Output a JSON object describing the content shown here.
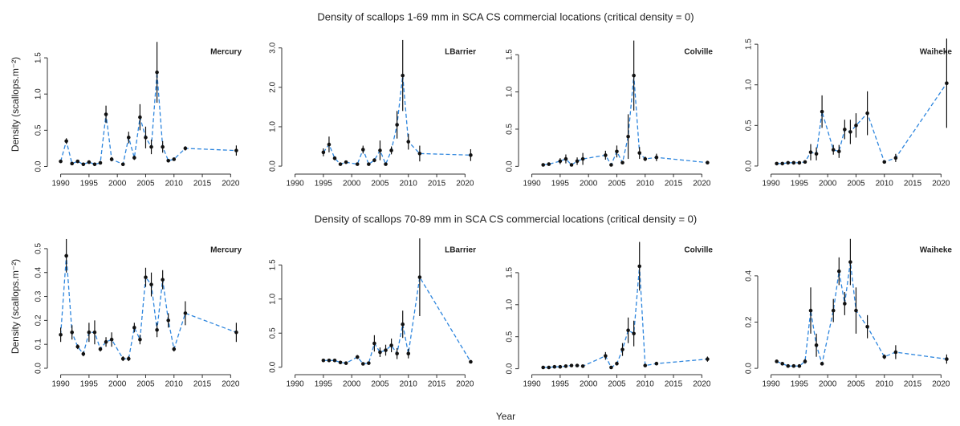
{
  "row_titles": [
    "Density of scallops 1-69 mm in SCA CS commercial locations (critical density = 0)",
    "Density of scallops 70-89 mm in SCA CS commercial locations (critical density = 0)"
  ],
  "y_label": "Density (scallops.m⁻²)",
  "x_label": "Year",
  "chart_data": [
    {
      "type": "line",
      "title": "Mercury",
      "x": [
        1990,
        1991,
        1992,
        1993,
        1994,
        1995,
        1996,
        1997,
        1998,
        1999,
        2001,
        2002,
        2003,
        2004,
        2005,
        2006,
        2007,
        2008,
        2009,
        2010,
        2012,
        2021
      ],
      "series": [
        {
          "color": "#2e86de",
          "values": [
            0.07,
            0.35,
            0.04,
            0.07,
            0.03,
            0.06,
            0.03,
            0.05,
            0.72,
            0.1,
            0.03,
            0.4,
            0.12,
            0.68,
            0.4,
            0.27,
            1.3,
            0.27,
            0.08,
            0.1,
            0.25,
            0.22
          ],
          "errors": [
            0.02,
            0.04,
            0.01,
            0.02,
            0.01,
            0.02,
            0.01,
            0.02,
            0.12,
            0.03,
            0.01,
            0.08,
            0.03,
            0.18,
            0.15,
            0.1,
            0.42,
            0.08,
            0.02,
            0.02,
            0.03,
            0.07
          ]
        }
      ],
      "xlim": [
        1988.5,
        2022.5
      ],
      "xticks": [
        1990,
        1995,
        2000,
        2005,
        2010,
        2015,
        2020
      ],
      "ylim": [
        -0.05,
        1.8
      ],
      "yticks": [
        {
          "value": 0,
          "label": "0.0"
        },
        {
          "value": 0.5,
          "label": "0.5"
        },
        {
          "value": 1,
          "label": "1.0"
        },
        {
          "value": 1.5,
          "label": "1.5"
        }
      ]
    },
    {
      "type": "line",
      "title": "LBarrier",
      "x": [
        1995,
        1996,
        1997,
        1998,
        1999,
        2001,
        2002,
        2003,
        2004,
        2005,
        2006,
        2007,
        2008,
        2009,
        2010,
        2012,
        2021
      ],
      "series": [
        {
          "color": "#2e86de",
          "values": [
            0.35,
            0.55,
            0.2,
            0.05,
            0.1,
            0.05,
            0.42,
            0.05,
            0.15,
            0.4,
            0.05,
            0.4,
            1.05,
            2.3,
            0.62,
            0.32,
            0.28
          ],
          "errors": [
            0.1,
            0.2,
            0.05,
            0.02,
            0.03,
            0.02,
            0.1,
            0.02,
            0.05,
            0.25,
            0.02,
            0.1,
            0.35,
            0.9,
            0.2,
            0.2,
            0.15
          ]
        }
      ],
      "xlim": [
        1988.5,
        2022.5
      ],
      "xticks": [
        1990,
        1995,
        2000,
        2005,
        2010,
        2015,
        2020
      ],
      "ylim": [
        -0.1,
        3.3
      ],
      "yticks": [
        {
          "value": 0,
          "label": "0.0"
        },
        {
          "value": 1,
          "label": "1.0"
        },
        {
          "value": 2,
          "label": "2.0"
        },
        {
          "value": 3,
          "label": "3.0"
        }
      ]
    },
    {
      "type": "line",
      "title": "Colville",
      "x": [
        1992,
        1993,
        1995,
        1996,
        1997,
        1998,
        1999,
        2003,
        2004,
        2005,
        2006,
        2007,
        2008,
        2009,
        2010,
        2012,
        2021
      ],
      "series": [
        {
          "color": "#2e86de",
          "values": [
            0.02,
            0.03,
            0.07,
            0.1,
            0.02,
            0.07,
            0.1,
            0.15,
            0.02,
            0.2,
            0.05,
            0.4,
            1.22,
            0.18,
            0.1,
            0.12,
            0.05
          ],
          "errors": [
            0.01,
            0.01,
            0.04,
            0.06,
            0.01,
            0.05,
            0.08,
            0.06,
            0.01,
            0.08,
            0.02,
            0.3,
            0.47,
            0.08,
            0.03,
            0.05,
            0.02
          ]
        }
      ],
      "xlim": [
        1988.5,
        2022.5
      ],
      "xticks": [
        1990,
        1995,
        2000,
        2005,
        2010,
        2015,
        2020
      ],
      "ylim": [
        -0.05,
        1.75
      ],
      "yticks": [
        {
          "value": 0,
          "label": "0.0"
        },
        {
          "value": 0.5,
          "label": "0.5"
        },
        {
          "value": 1,
          "label": "1.0"
        },
        {
          "value": 1.5,
          "label": "1.5"
        }
      ]
    },
    {
      "type": "line",
      "title": "Waiheke",
      "x": [
        1991,
        1992,
        1993,
        1994,
        1995,
        1996,
        1997,
        1998,
        1999,
        2001,
        2002,
        2003,
        2004,
        2005,
        2007,
        2010,
        2012,
        2021
      ],
      "series": [
        {
          "color": "#2e86de",
          "values": [
            0.03,
            0.03,
            0.04,
            0.04,
            0.04,
            0.05,
            0.17,
            0.15,
            0.67,
            0.2,
            0.18,
            0.45,
            0.42,
            0.5,
            0.65,
            0.05,
            0.1,
            1.02
          ],
          "errors": [
            0.01,
            0.01,
            0.01,
            0.01,
            0.01,
            0.02,
            0.1,
            0.08,
            0.2,
            0.06,
            0.08,
            0.12,
            0.15,
            0.15,
            0.27,
            0.02,
            0.05,
            0.55
          ]
        }
      ],
      "xlim": [
        1988.5,
        2022.5
      ],
      "xticks": [
        1990,
        1995,
        2000,
        2005,
        2010,
        2015,
        2020
      ],
      "ylim": [
        -0.05,
        1.6
      ],
      "yticks": [
        {
          "value": 0,
          "label": "0.0"
        },
        {
          "value": 0.5,
          "label": "0.5"
        },
        {
          "value": 1,
          "label": "1.0"
        },
        {
          "value": 1.5,
          "label": "1.5"
        }
      ]
    },
    {
      "type": "line",
      "title": "Mercury",
      "x": [
        1990,
        1991,
        1992,
        1993,
        1994,
        1995,
        1996,
        1997,
        1998,
        1999,
        2001,
        2002,
        2003,
        2004,
        2005,
        2006,
        2007,
        2008,
        2009,
        2010,
        2012,
        2021
      ],
      "series": [
        {
          "color": "#2e86de",
          "values": [
            0.14,
            0.47,
            0.15,
            0.09,
            0.06,
            0.15,
            0.15,
            0.08,
            0.11,
            0.12,
            0.04,
            0.04,
            0.17,
            0.12,
            0.38,
            0.35,
            0.16,
            0.37,
            0.2,
            0.08,
            0.23,
            0.15
          ],
          "errors": [
            0.03,
            0.07,
            0.03,
            0.01,
            0.01,
            0.04,
            0.05,
            0.01,
            0.02,
            0.03,
            0.01,
            0.01,
            0.02,
            0.02,
            0.04,
            0.05,
            0.03,
            0.04,
            0.03,
            0.01,
            0.05,
            0.04
          ]
        }
      ],
      "xlim": [
        1988.5,
        2022.5
      ],
      "xticks": [
        1990,
        1995,
        2000,
        2005,
        2010,
        2015,
        2020
      ],
      "ylim": [
        -0.01,
        0.56
      ],
      "yticks": [
        {
          "value": 0,
          "label": "0.0"
        },
        0.1,
        0.2,
        0.3,
        0.4,
        0.5
      ]
    },
    {
      "type": "line",
      "title": "LBarrier",
      "x": [
        1995,
        1996,
        1997,
        1998,
        1999,
        2001,
        2002,
        2003,
        2004,
        2005,
        2006,
        2007,
        2008,
        2009,
        2010,
        2012,
        2021
      ],
      "series": [
        {
          "color": "#2e86de",
          "values": [
            0.1,
            0.1,
            0.1,
            0.07,
            0.06,
            0.15,
            0.05,
            0.06,
            0.35,
            0.22,
            0.25,
            0.32,
            0.2,
            0.63,
            0.2,
            1.32,
            0.08
          ],
          "errors": [
            0.02,
            0.02,
            0.02,
            0.01,
            0.01,
            0.03,
            0.01,
            0.01,
            0.12,
            0.07,
            0.08,
            0.1,
            0.08,
            0.2,
            0.07,
            0.57,
            0.02
          ]
        }
      ],
      "xlim": [
        1988.5,
        2022.5
      ],
      "xticks": [
        1990,
        1995,
        2000,
        2005,
        2010,
        2015,
        2020
      ],
      "ylim": [
        -0.05,
        1.95
      ],
      "yticks": [
        {
          "value": 0,
          "label": "0.0"
        },
        {
          "value": 0.5,
          "label": "0.5"
        },
        {
          "value": 1,
          "label": "1.0"
        },
        {
          "value": 1.5,
          "label": "1.5"
        }
      ]
    },
    {
      "type": "line",
      "title": "Colville",
      "x": [
        1992,
        1993,
        1994,
        1995,
        1996,
        1997,
        1998,
        1999,
        2003,
        2004,
        2005,
        2006,
        2007,
        2008,
        2009,
        2010,
        2012,
        2021
      ],
      "series": [
        {
          "color": "#2e86de",
          "values": [
            0.02,
            0.02,
            0.03,
            0.03,
            0.04,
            0.05,
            0.05,
            0.04,
            0.2,
            0.02,
            0.08,
            0.3,
            0.6,
            0.55,
            1.6,
            0.05,
            0.08,
            0.15
          ],
          "errors": [
            0.01,
            0.01,
            0.01,
            0.01,
            0.02,
            0.02,
            0.02,
            0.02,
            0.06,
            0.01,
            0.03,
            0.1,
            0.2,
            0.2,
            0.38,
            0.02,
            0.02,
            0.04
          ]
        }
      ],
      "xlim": [
        1988.5,
        2022.5
      ],
      "xticks": [
        1990,
        1995,
        2000,
        2005,
        2010,
        2015,
        2020
      ],
      "ylim": [
        -0.03,
        2.1
      ],
      "yticks": [
        {
          "value": 0,
          "label": "0.0"
        },
        {
          "value": 0.5,
          "label": "0.5"
        },
        {
          "value": 1,
          "label": "1.0"
        },
        {
          "value": 1.5,
          "label": "1.5"
        }
      ]
    },
    {
      "type": "line",
      "title": "Waiheke",
      "x": [
        1991,
        1992,
        1993,
        1994,
        1995,
        1996,
        1997,
        1998,
        1999,
        2001,
        2002,
        2003,
        2004,
        2005,
        2007,
        2010,
        2012,
        2021
      ],
      "series": [
        {
          "color": "#2e86de",
          "values": [
            0.03,
            0.02,
            0.01,
            0.01,
            0.01,
            0.03,
            0.25,
            0.1,
            0.02,
            0.25,
            0.42,
            0.28,
            0.46,
            0.25,
            0.18,
            0.05,
            0.07,
            0.04
          ],
          "errors": [
            0.005,
            0.005,
            0.005,
            0.005,
            0.005,
            0.01,
            0.1,
            0.05,
            0.005,
            0.05,
            0.06,
            0.05,
            0.1,
            0.1,
            0.05,
            0.01,
            0.03,
            0.02
          ]
        }
      ],
      "xlim": [
        1988.5,
        2022.5
      ],
      "xticks": [
        1990,
        1995,
        2000,
        2005,
        2010,
        2015,
        2020
      ],
      "ylim": [
        -0.01,
        0.58
      ],
      "yticks": [
        {
          "value": 0,
          "label": "0.0"
        },
        0.2,
        0.4
      ]
    }
  ]
}
